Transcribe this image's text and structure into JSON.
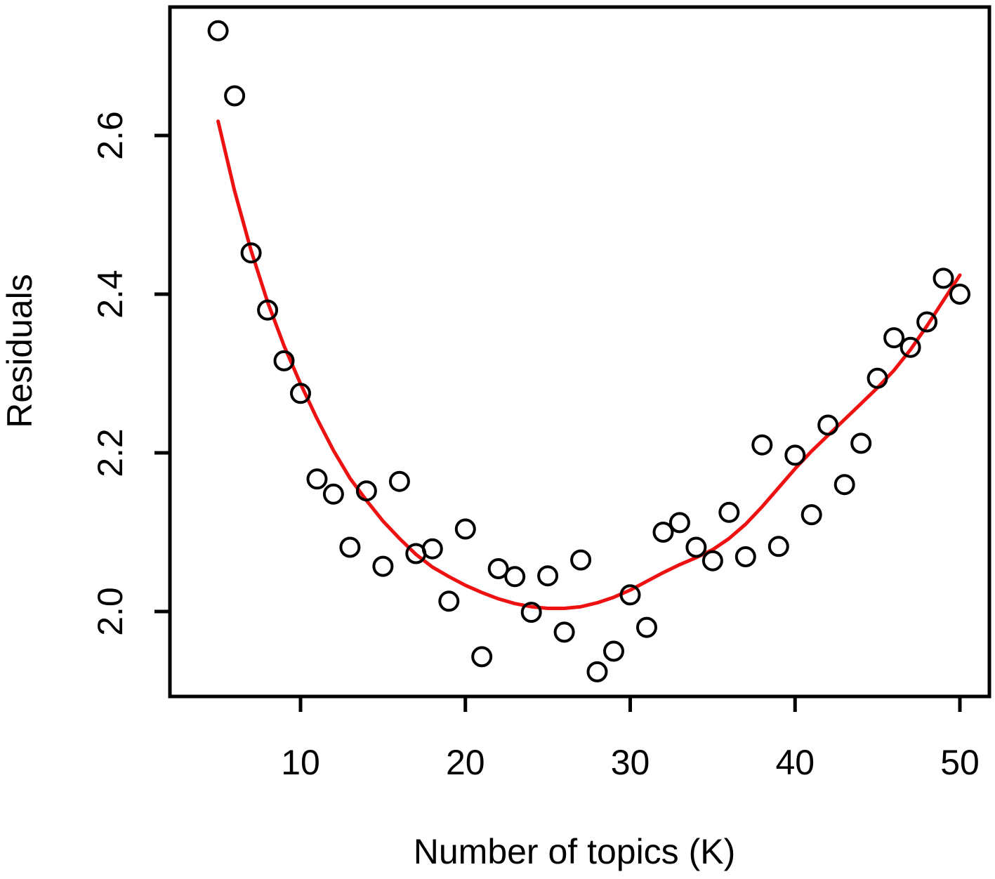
{
  "chart_data": {
    "type": "scatter",
    "title": "",
    "xlabel": "Number of topics (K)",
    "ylabel": "Residuals",
    "grid": false,
    "legend_position": "none",
    "xlim": [
      2.1,
      51.8
    ],
    "ylim": [
      1.89,
      2.76
    ],
    "xtick_values": [
      10,
      20,
      30,
      40,
      50
    ],
    "xtick_labels": [
      "10",
      "20",
      "30",
      "40",
      "50"
    ],
    "ytick_values": [
      2.0,
      2.2,
      2.4,
      2.6
    ],
    "ytick_labels": [
      "2.0",
      "2.2",
      "2.4",
      "2.6"
    ],
    "point_marker": "open-circle",
    "point_color": "#000000",
    "points": {
      "x": [
        5,
        6,
        7,
        8,
        9,
        10,
        11,
        12,
        13,
        14,
        15,
        16,
        17,
        18,
        19,
        20,
        21,
        22,
        23,
        24,
        25,
        26,
        27,
        28,
        29,
        30,
        31,
        32,
        33,
        34,
        35,
        36,
        37,
        38,
        39,
        40,
        41,
        42,
        43,
        44,
        45,
        46,
        47,
        48,
        49,
        50
      ],
      "y": [
        2.732,
        2.65,
        2.452,
        2.38,
        2.316,
        2.275,
        2.167,
        2.148,
        2.081,
        2.152,
        2.057,
        2.164,
        2.073,
        2.079,
        2.013,
        2.104,
        1.943,
        2.054,
        2.044,
        1.999,
        2.045,
        1.974,
        2.065,
        1.924,
        1.95,
        2.021,
        1.98,
        2.1,
        2.112,
        2.081,
        2.064,
        2.125,
        2.069,
        2.21,
        2.082,
        2.197,
        2.122,
        2.235,
        2.16,
        2.212,
        2.294,
        2.345,
        2.333,
        2.365,
        2.42,
        2.4
      ]
    },
    "fit_curve": {
      "name": "smoothed-fit-line",
      "color": "#ee1111",
      "x": [
        5,
        6,
        7,
        8,
        9,
        10,
        11,
        12,
        13,
        14,
        15,
        16,
        17,
        18,
        19,
        20,
        21,
        22,
        23,
        24,
        25,
        26,
        27,
        28,
        29,
        30,
        31,
        32,
        33,
        34,
        35,
        36,
        37,
        38,
        39,
        40,
        41,
        42,
        43,
        44,
        45,
        46,
        47,
        48,
        49,
        50
      ],
      "y": [
        2.618,
        2.53,
        2.455,
        2.39,
        2.335,
        2.287,
        2.243,
        2.203,
        2.168,
        2.14,
        2.114,
        2.092,
        2.072,
        2.056,
        2.044,
        2.033,
        2.024,
        2.016,
        2.01,
        2.006,
        2.004,
        2.004,
        2.006,
        2.011,
        2.018,
        2.027,
        2.038,
        2.049,
        2.059,
        2.068,
        2.078,
        2.092,
        2.11,
        2.132,
        2.156,
        2.18,
        2.202,
        2.222,
        2.242,
        2.262,
        2.282,
        2.304,
        2.33,
        2.36,
        2.392,
        2.424
      ]
    }
  }
}
